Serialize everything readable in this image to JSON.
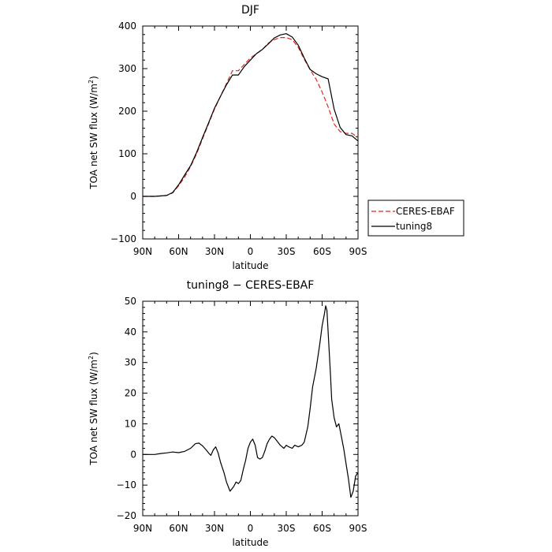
{
  "chart_data": [
    {
      "type": "line",
      "title": "DJF",
      "xlabel": "latitude",
      "ylabel_main": "TOA net SW flux (W/m",
      "ylabel_sup": "2",
      "ylabel_close": ")",
      "xlim": [
        -90,
        90
      ],
      "ylim": [
        -100,
        400
      ],
      "xticks": [
        {
          "value": -90,
          "label": "90N"
        },
        {
          "value": -60,
          "label": "60N"
        },
        {
          "value": -30,
          "label": "30N"
        },
        {
          "value": 0,
          "label": "0"
        },
        {
          "value": 30,
          "label": "30S"
        },
        {
          "value": 60,
          "label": "60S"
        },
        {
          "value": 90,
          "label": "90S"
        }
      ],
      "yticks": [
        -100,
        0,
        100,
        200,
        300,
        400
      ],
      "legend_position": "right-bottom-outside",
      "series": [
        {
          "name": "CERES-EBAF",
          "color": "#e8231f",
          "dash": "dashed",
          "x": [
            -90,
            -80,
            -70,
            -65,
            -60,
            -55,
            -50,
            -45,
            -40,
            -35,
            -30,
            -25,
            -20,
            -15,
            -10,
            -5,
            0,
            5,
            10,
            15,
            20,
            25,
            30,
            35,
            40,
            45,
            50,
            55,
            60,
            65,
            70,
            75,
            80,
            85,
            90
          ],
          "y": [
            0,
            0,
            2,
            8,
            25,
            45,
            70,
            100,
            135,
            170,
            205,
            235,
            265,
            295,
            295,
            310,
            325,
            335,
            345,
            360,
            368,
            373,
            373,
            368,
            350,
            322,
            297,
            275,
            245,
            210,
            170,
            152,
            148,
            148,
            138
          ]
        },
        {
          "name": "tuning8",
          "color": "#000000",
          "dash": "solid",
          "x": [
            -90,
            -80,
            -70,
            -65,
            -60,
            -55,
            -50,
            -45,
            -40,
            -35,
            -30,
            -25,
            -20,
            -15,
            -10,
            -5,
            0,
            5,
            10,
            15,
            20,
            25,
            30,
            35,
            40,
            45,
            50,
            55,
            60,
            65,
            70,
            75,
            80,
            85,
            90
          ],
          "y": [
            0,
            0,
            2,
            9,
            27,
            50,
            72,
            103,
            138,
            172,
            207,
            235,
            262,
            285,
            285,
            305,
            320,
            335,
            345,
            358,
            372,
            379,
            382,
            374,
            355,
            325,
            298,
            288,
            281,
            276,
            205,
            162,
            145,
            142,
            130
          ]
        }
      ]
    },
    {
      "type": "line",
      "title": "tuning8 − CERES-EBAF",
      "xlabel": "latitude",
      "ylabel_main": "TOA net SW flux (W/m",
      "ylabel_sup": "2",
      "ylabel_close": ")",
      "xlim": [
        -90,
        90
      ],
      "ylim": [
        -20,
        50
      ],
      "xticks": [
        {
          "value": -90,
          "label": "90N"
        },
        {
          "value": -60,
          "label": "60N"
        },
        {
          "value": -30,
          "label": "30N"
        },
        {
          "value": 0,
          "label": "0"
        },
        {
          "value": 30,
          "label": "30S"
        },
        {
          "value": 60,
          "label": "60S"
        },
        {
          "value": 90,
          "label": "90S"
        }
      ],
      "yticks": [
        -20,
        -10,
        0,
        10,
        20,
        30,
        40,
        50
      ],
      "series": [
        {
          "color": "#000000",
          "dash": "solid",
          "x": [
            -90,
            -80,
            -75,
            -70,
            -65,
            -60,
            -55,
            -50,
            -46,
            -43,
            -40,
            -37,
            -35,
            -33,
            -31,
            -29,
            -27,
            -25,
            -22,
            -20,
            -17,
            -14,
            -12,
            -10,
            -8,
            -6,
            -4,
            -2,
            0,
            2,
            4,
            6,
            8,
            10,
            12,
            14,
            16,
            18,
            20,
            22,
            25,
            28,
            30,
            32,
            35,
            37,
            40,
            43,
            45,
            48,
            50,
            52,
            55,
            58,
            60,
            62,
            63,
            64,
            65,
            66,
            67,
            68,
            70,
            72,
            74,
            76,
            78,
            80,
            82,
            84,
            86,
            88,
            89,
            90
          ],
          "y": [
            0,
            0,
            0.3,
            0.5,
            0.8,
            0.6,
            1,
            2,
            3.5,
            3.7,
            2.8,
            1.5,
            0.5,
            -0.3,
            1.5,
            2.5,
            0.5,
            -2.5,
            -6,
            -9,
            -12,
            -10.5,
            -9,
            -9.5,
            -8.5,
            -5,
            -2,
            2,
            4,
            5,
            3,
            -1,
            -1.5,
            -1,
            1,
            3.5,
            5,
            6,
            5.5,
            4.5,
            3,
            2,
            3,
            2.5,
            2,
            3,
            2.5,
            3,
            4,
            9,
            15,
            22,
            28,
            36,
            42,
            46,
            48.5,
            47,
            40,
            33,
            26,
            18,
            12,
            9,
            10,
            6,
            2,
            -3,
            -8,
            -14,
            -12,
            -7,
            -6.5,
            -6
          ]
        }
      ]
    }
  ]
}
